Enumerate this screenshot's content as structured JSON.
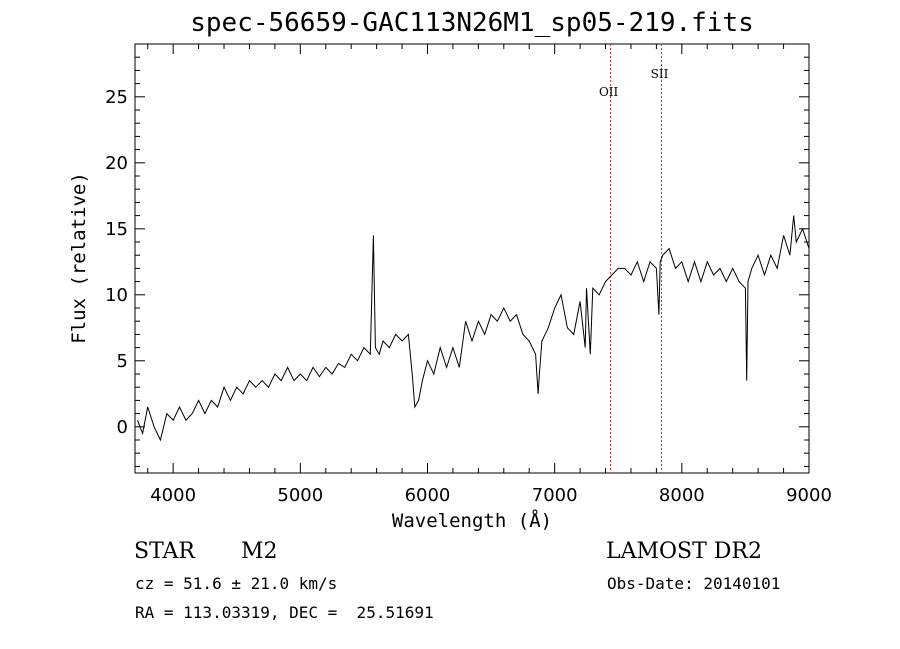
{
  "chart_data": {
    "type": "line",
    "title": "spec-56659-GAC113N26M1_sp05-219.fits",
    "xlabel": "Wavelength (Å)",
    "ylabel": "Flux (relative)",
    "xlim": [
      3700,
      9000
    ],
    "ylim": [
      -3.5,
      29
    ],
    "xticks": [
      4000,
      5000,
      6000,
      7000,
      8000,
      9000
    ],
    "yticks": [
      0,
      5,
      10,
      15,
      20,
      25
    ],
    "grid": false,
    "series": [
      {
        "x": [
          3720,
          3760,
          3800,
          3850,
          3900,
          3950,
          4000,
          4050,
          4100,
          4150,
          4200,
          4250,
          4300,
          4350,
          4400,
          4450,
          4500,
          4550,
          4600,
          4650,
          4700,
          4750,
          4800,
          4850,
          4900,
          4950,
          5000,
          5050,
          5100,
          5150,
          5200,
          5250,
          5300,
          5350,
          5400,
          5450,
          5500,
          5550,
          5575,
          5590,
          5620,
          5650,
          5700,
          5750,
          5800,
          5850,
          5880,
          5900,
          5930,
          5960,
          6000,
          6050,
          6100,
          6150,
          6200,
          6250,
          6300,
          6350,
          6400,
          6450,
          6500,
          6550,
          6600,
          6650,
          6700,
          6750,
          6800,
          6850,
          6870,
          6880,
          6900,
          6950,
          7000,
          7050,
          7100,
          7150,
          7200,
          7240,
          7250,
          7280,
          7300,
          7350,
          7400,
          7450,
          7500,
          7550,
          7600,
          7650,
          7700,
          7750,
          7800,
          7820,
          7830,
          7850,
          7900,
          7950,
          8000,
          8050,
          8100,
          8150,
          8200,
          8250,
          8300,
          8350,
          8400,
          8450,
          8500,
          8510,
          8520,
          8550,
          8600,
          8650,
          8700,
          8750,
          8800,
          8850,
          8880,
          8900,
          8950,
          9000
        ],
        "y": [
          0.5,
          -0.5,
          1.5,
          0,
          -1,
          1,
          0.5,
          1.5,
          0.5,
          1,
          2,
          1,
          2,
          1.5,
          3,
          2,
          3,
          2.5,
          3.5,
          3,
          3.5,
          3,
          4,
          3.5,
          4.5,
          3.5,
          4,
          3.5,
          4.5,
          3.8,
          4.5,
          4,
          4.8,
          4.5,
          5.5,
          5,
          6,
          5.5,
          14.5,
          6,
          5.5,
          6.5,
          6,
          7,
          6.5,
          7,
          4,
          1.5,
          2,
          3.5,
          5,
          4,
          6,
          4.5,
          6,
          4.5,
          8,
          6.5,
          8,
          7,
          8.5,
          8,
          9,
          8,
          8.5,
          7,
          6.5,
          5.5,
          2.5,
          4,
          6.5,
          7.5,
          9,
          10,
          7.5,
          7,
          9.5,
          6,
          10.5,
          5.5,
          10.5,
          10,
          11,
          11.5,
          12,
          12,
          11.5,
          12.5,
          11,
          12.5,
          12,
          8.5,
          12.5,
          13,
          13.5,
          12,
          12.5,
          11,
          12.5,
          11,
          12.5,
          11.5,
          12,
          11,
          12,
          11,
          10.5,
          3.5,
          11,
          12,
          13,
          11.5,
          13,
          12,
          14.5,
          13,
          16,
          14,
          15,
          13.5
        ]
      }
    ],
    "lines": [
      {
        "label": "OII",
        "x": 7440,
        "color": "#c0392b"
      },
      {
        "label": "SII",
        "x": 7840,
        "color": "#c0392b"
      }
    ]
  },
  "info": {
    "class_label": "STAR",
    "subclass": "M2",
    "survey": "LAMOST DR2",
    "velocity": "cz = 51.6 ± 21.0 km/s",
    "obs_date": "Obs-Date: 20140101",
    "coords": "RA = 113.03319, DEC =  25.51691"
  }
}
